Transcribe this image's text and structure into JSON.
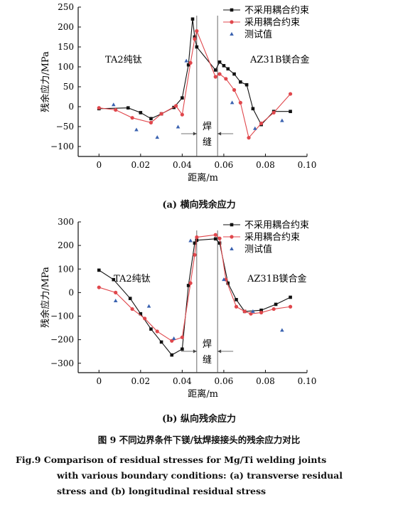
{
  "figure": {
    "title_zh": "图 9   不同边界条件下镁/钛焊接接头的残余应力对比",
    "title_en_line1": "Fig.9   Comparison of residual stresses for Mg/Ti welding joints",
    "title_en_line2": "with various boundary conditions: (a) transverse residual",
    "title_en_line3": "stress and (b) longitudinal residual stress"
  },
  "colors": {
    "series1": "#111111",
    "series2": "#e0474c",
    "series3": "#3a62b0"
  },
  "chart_data": [
    {
      "type": "line",
      "caption": "(a) 横向残余应力",
      "xlabel": "距离/m",
      "ylabel": "残余应力/MPa",
      "xlim": [
        -0.01,
        0.1
      ],
      "ylim": [
        -125,
        250
      ],
      "xticks": [
        0,
        0.02,
        0.04,
        0.06,
        0.08,
        0.1
      ],
      "xtick_labels": [
        "0",
        "0.02",
        "0.04",
        "0.06",
        "0.08",
        "0.10"
      ],
      "yticks": [
        -100,
        -50,
        0,
        50,
        100,
        150,
        200,
        250
      ],
      "ytick_labels": [
        "−100",
        "−50",
        "0",
        "50",
        "100",
        "150",
        "200",
        "250"
      ],
      "annotations": {
        "left": "TA2纯钛",
        "right": "AZ31B镁合金",
        "weld1": "焊",
        "weld2": "缝"
      },
      "weld_lines": [
        0.047,
        0.057
      ],
      "series": [
        {
          "name": "不采用耦合约束",
          "marker": "square",
          "x": [
            0,
            0.014,
            0.02,
            0.025,
            0.03,
            0.036,
            0.04,
            0.043,
            0.045,
            0.046,
            0.047,
            0.056,
            0.058,
            0.06,
            0.062,
            0.065,
            0.068,
            0.071,
            0.074,
            0.078,
            0.084,
            0.092
          ],
          "y": [
            -5,
            -3,
            -15,
            -30,
            -18,
            -2,
            22,
            105,
            220,
            175,
            150,
            92,
            112,
            103,
            95,
            82,
            62,
            55,
            -5,
            -45,
            -12,
            -12
          ]
        },
        {
          "name": "采用耦合约束",
          "marker": "circle",
          "x": [
            0,
            0.008,
            0.016,
            0.025,
            0.03,
            0.037,
            0.04,
            0.044,
            0.046,
            0.047,
            0.056,
            0.058,
            0.061,
            0.065,
            0.068,
            0.072,
            0.078,
            0.084,
            0.092
          ],
          "y": [
            -3,
            -8,
            -28,
            -40,
            -18,
            2,
            -20,
            110,
            170,
            190,
            75,
            82,
            70,
            42,
            10,
            -78,
            -42,
            -15,
            32
          ]
        },
        {
          "name": "测试值",
          "marker": "triangle",
          "x": [
            0.007,
            0.018,
            0.028,
            0.038,
            0.042,
            0.064,
            0.075,
            0.088
          ],
          "y": [
            5,
            -58,
            -77,
            -51,
            115,
            10,
            -55,
            -35
          ]
        }
      ]
    },
    {
      "type": "line",
      "caption": "(b) 纵向残余应力",
      "xlabel": "距离/m",
      "ylabel": "残余应力/MPa",
      "xlim": [
        -0.01,
        0.1
      ],
      "ylim": [
        -340,
        300
      ],
      "xticks": [
        0,
        0.02,
        0.04,
        0.06,
        0.08,
        0.1
      ],
      "xtick_labels": [
        "0",
        "0.02",
        "0.04",
        "0.06",
        "0.08",
        "0.10"
      ],
      "yticks": [
        -300,
        -200,
        -100,
        0,
        100,
        200,
        300
      ],
      "ytick_labels": [
        "−300",
        "−200",
        "−100",
        "0",
        "100",
        "200",
        "300"
      ],
      "annotations": {
        "left": "TA2纯钛",
        "right": "AZ31B镁合金",
        "weld1": "焊",
        "weld2": "缝"
      },
      "weld_lines": [
        0.047,
        0.057
      ],
      "series": [
        {
          "name": "不采用耦合约束",
          "marker": "square",
          "x": [
            0,
            0.007,
            0.015,
            0.02,
            0.025,
            0.03,
            0.035,
            0.04,
            0.043,
            0.046,
            0.047,
            0.056,
            0.058,
            0.062,
            0.066,
            0.07,
            0.078,
            0.085,
            0.092
          ],
          "y": [
            95,
            55,
            -25,
            -90,
            -155,
            -210,
            -265,
            -240,
            30,
            210,
            222,
            228,
            210,
            40,
            -30,
            -80,
            -75,
            -50,
            -20
          ]
        },
        {
          "name": "采用耦合约束",
          "marker": "circle",
          "x": [
            0,
            0.008,
            0.016,
            0.022,
            0.028,
            0.035,
            0.04,
            0.044,
            0.046,
            0.047,
            0.056,
            0.058,
            0.061,
            0.066,
            0.07,
            0.073,
            0.078,
            0.084,
            0.092
          ],
          "y": [
            22,
            0,
            -70,
            -110,
            -165,
            -205,
            -190,
            40,
            160,
            235,
            245,
            230,
            55,
            -60,
            -80,
            -90,
            -85,
            -70,
            -60
          ]
        },
        {
          "name": "测试值",
          "marker": "triangle",
          "x": [
            0.008,
            0.024,
            0.036,
            0.044,
            0.06,
            0.074,
            0.088
          ],
          "y": [
            -35,
            -58,
            -195,
            220,
            55,
            -80,
            -160
          ]
        }
      ]
    }
  ]
}
